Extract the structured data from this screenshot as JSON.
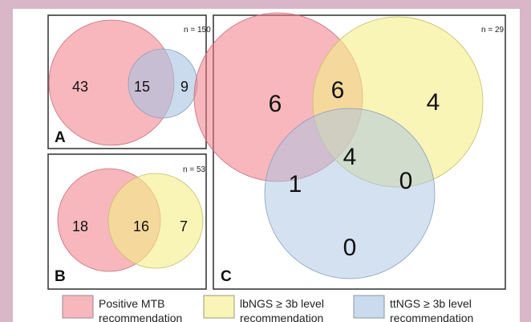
{
  "colors": {
    "mtb": "#f07b87",
    "lbngs": "#f3ef86",
    "ttngs": "#a9c3e3",
    "background": "#d9b6c8"
  },
  "panels": {
    "a": {
      "label": "A",
      "n": "n = 150",
      "regions": {
        "mtb_only": "43",
        "mtb_ttngs": "15",
        "ttngs_only": "9"
      }
    },
    "b": {
      "label": "B",
      "n": "n = 53",
      "regions": {
        "mtb_only": "18",
        "mtb_lbngs": "16",
        "lbngs_only": "7"
      }
    },
    "c": {
      "label": "C",
      "n": "n = 29",
      "regions": {
        "mtb_only": "6",
        "mtb_lbngs": "6",
        "lbngs_only": "4",
        "all_three": "4",
        "mtb_ttngs": "1",
        "lbngs_ttngs": "0",
        "ttngs_only": "0"
      }
    }
  },
  "legend": [
    {
      "line1": "Positive MTB",
      "line2": "recommendation",
      "color": "#f07b87"
    },
    {
      "line1": "lbNGS  ≥ 3b level",
      "line2": "recommendation",
      "color": "#f3ef86"
    },
    {
      "line1": "ttNGS  ≥ 3b level",
      "line2": "recommendation",
      "color": "#a9c3e3"
    }
  ]
}
